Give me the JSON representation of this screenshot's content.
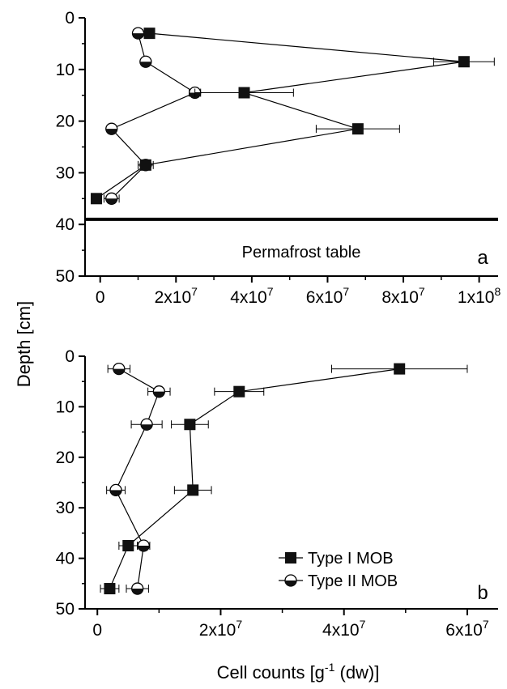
{
  "y_axis_title": "Depth [cm]",
  "x_axis_title": {
    "pre": "Cell counts [g",
    "sup": "-1",
    "post": " (dw)]"
  },
  "legend": {
    "type1": "Type I MOB",
    "type2": "Type II MOB",
    "placement": "inside-lower-right of panel b"
  },
  "chart_data": [
    {
      "panel": "a",
      "type": "line",
      "xlim": [
        -4000000,
        105000000
      ],
      "ylim": [
        0,
        50
      ],
      "y_inverted": true,
      "x_ticks": [
        {
          "v": 0,
          "label": "0"
        },
        {
          "v": 20000000,
          "m": "2",
          "e": "7"
        },
        {
          "v": 40000000,
          "m": "4",
          "e": "7"
        },
        {
          "v": 60000000,
          "m": "6",
          "e": "7"
        },
        {
          "v": 80000000,
          "m": "8",
          "e": "7"
        },
        {
          "v": 100000000,
          "m": "1",
          "e": "8"
        }
      ],
      "y_ticks": [
        0,
        10,
        20,
        30,
        40,
        50
      ],
      "annotation": {
        "text": "Permafrost table",
        "depth": 39
      },
      "series": [
        {
          "name": "Type I MOB",
          "marker": "square",
          "points": [
            {
              "x": 13000000,
              "y": 3
            },
            {
              "x": 96000000,
              "y": 8.5,
              "err": 8000000
            },
            {
              "x": 38000000,
              "y": 14.5,
              "err": 13000000
            },
            {
              "x": 68000000,
              "y": 21.5,
              "err": 11000000
            },
            {
              "x": 12000000,
              "y": 28.5,
              "err": 2000000
            },
            {
              "x": -1000000,
              "y": 35,
              "err": 0
            }
          ]
        },
        {
          "name": "Type II MOB",
          "marker": "half-circle",
          "points": [
            {
              "x": 10000000,
              "y": 3,
              "err": 1200000
            },
            {
              "x": 12000000,
              "y": 8.5,
              "err": 1000000
            },
            {
              "x": 25000000,
              "y": 14.5,
              "err": 1500000
            },
            {
              "x": 3000000,
              "y": 21.5,
              "err": 500000
            },
            {
              "x": 12000000,
              "y": 28.5,
              "err": 1000000
            },
            {
              "x": 3000000,
              "y": 35,
              "err": 2000000
            }
          ]
        }
      ]
    },
    {
      "panel": "b",
      "type": "line",
      "xlim": [
        -2000000,
        65000000
      ],
      "ylim": [
        0,
        50
      ],
      "y_inverted": true,
      "x_ticks": [
        {
          "v": 0,
          "label": "0"
        },
        {
          "v": 20000000,
          "m": "2",
          "e": "7"
        },
        {
          "v": 40000000,
          "m": "4",
          "e": "7"
        },
        {
          "v": 60000000,
          "m": "6",
          "e": "7"
        }
      ],
      "y_ticks": [
        0,
        10,
        20,
        30,
        40,
        50
      ],
      "series": [
        {
          "name": "Type I MOB",
          "marker": "square",
          "points": [
            {
              "x": 49000000,
              "y": 2.5,
              "err": 11000000
            },
            {
              "x": 23000000,
              "y": 7,
              "err": 4000000
            },
            {
              "x": 15000000,
              "y": 13.5,
              "err": 3000000
            },
            {
              "x": 15500000,
              "y": 26.5,
              "err": 3000000
            },
            {
              "x": 5000000,
              "y": 37.5,
              "err": 1500000
            },
            {
              "x": 2000000,
              "y": 46,
              "err": 1500000
            }
          ]
        },
        {
          "name": "Type II MOB",
          "marker": "half-circle",
          "points": [
            {
              "x": 3500000,
              "y": 2.5,
              "err": 1800000
            },
            {
              "x": 10000000,
              "y": 7,
              "err": 1800000
            },
            {
              "x": 8000000,
              "y": 13.5,
              "err": 2500000
            },
            {
              "x": 3000000,
              "y": 26.5,
              "err": 1500000
            },
            {
              "x": 7500000,
              "y": 37.5,
              "err": 1000000
            },
            {
              "x": 6500000,
              "y": 46,
              "err": 1800000
            }
          ]
        }
      ]
    }
  ]
}
